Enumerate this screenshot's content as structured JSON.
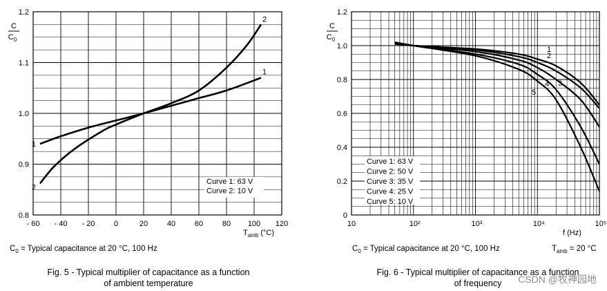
{
  "figures": [
    {
      "note": "C0 = Typical capacitance at 20 °C, 100 Hz",
      "caption_line1": "Fig. 5 - Typical multiplier of capacitance as a function",
      "caption_line2": "of ambient temperature"
    },
    {
      "note": "C0 = Typical capacitance at 20 °C, 100 Hz",
      "note_right": "Tamb = 20 °C",
      "caption_line1": "Fig. 6 - Typical multiplier of capacitance as a function",
      "caption_line2": "of frequency"
    }
  ],
  "watermark": "CSDN @牧神园地",
  "chart_data": [
    {
      "type": "line",
      "ylabel": "C/C0",
      "xlabel": "Tamb (°C)",
      "xlim": [
        -60,
        120
      ],
      "ylim": [
        0.8,
        1.2
      ],
      "x_ticks": [
        -60,
        -40,
        -20,
        0,
        20,
        40,
        60,
        80,
        100,
        120
      ],
      "x_tick_labels": [
        "- 60",
        "- 40",
        "- 20",
        "0",
        "20",
        "40",
        "60",
        "80",
        "100",
        "120"
      ],
      "y_ticks": [
        0.8,
        0.9,
        1.0,
        1.1,
        1.2
      ],
      "y_tick_labels": [
        "0.8",
        "0.9",
        "1.0",
        "1.1",
        "1.2"
      ],
      "grid": true,
      "legend": [
        "Curve 1: 63 V",
        "Curve 2: 10 V"
      ],
      "legend_position": "bottom-right",
      "series": [
        {
          "name": "1",
          "x": [
            -55,
            -40,
            -20,
            0,
            20,
            40,
            60,
            80,
            105
          ],
          "y": [
            0.94,
            0.955,
            0.972,
            0.986,
            1.0,
            1.015,
            1.03,
            1.045,
            1.07
          ]
        },
        {
          "name": "2",
          "x": [
            -55,
            -45,
            -30,
            -10,
            0,
            20,
            40,
            60,
            80,
            95,
            105
          ],
          "y": [
            0.862,
            0.895,
            0.93,
            0.965,
            0.978,
            1.0,
            1.02,
            1.045,
            1.09,
            1.135,
            1.175
          ]
        }
      ]
    },
    {
      "type": "line",
      "ylabel": "C/C0",
      "xlabel": "f (Hz)",
      "xscale": "log",
      "xlim": [
        10,
        100000
      ],
      "ylim": [
        0,
        1.2
      ],
      "x_tick_labels": [
        "10",
        "10²",
        "10³",
        "10⁴",
        "10⁵"
      ],
      "y_ticks": [
        0,
        0.2,
        0.4,
        0.6,
        0.8,
        1.0,
        1.2
      ],
      "y_tick_labels": [
        "0",
        "0.2",
        "0.4",
        "0.6",
        "0.8",
        "1.0",
        "1.2"
      ],
      "grid": true,
      "legend": [
        "Curve 1: 63 V",
        "Curve 2: 50 V",
        "Curve 3: 35 V",
        "Curve 4: 25 V",
        "Curve 5: 10 V"
      ],
      "legend_position": "bottom-left",
      "series": [
        {
          "name": "1",
          "x": [
            50,
            100,
            1000,
            5000,
            10000,
            20000,
            50000,
            100000
          ],
          "y": [
            1.01,
            1.0,
            0.98,
            0.95,
            0.92,
            0.88,
            0.78,
            0.65
          ]
        },
        {
          "name": "2",
          "x": [
            50,
            100,
            1000,
            5000,
            10000,
            20000,
            50000,
            100000
          ],
          "y": [
            1.01,
            1.0,
            0.975,
            0.935,
            0.9,
            0.85,
            0.75,
            0.63
          ]
        },
        {
          "name": "3",
          "x": [
            50,
            100,
            1000,
            5000,
            10000,
            20000,
            50000,
            100000
          ],
          "y": [
            1.015,
            1.0,
            0.965,
            0.915,
            0.87,
            0.8,
            0.68,
            0.52
          ]
        },
        {
          "name": "4",
          "x": [
            50,
            100,
            1000,
            5000,
            10000,
            20000,
            50000,
            100000
          ],
          "y": [
            1.015,
            1.0,
            0.95,
            0.89,
            0.83,
            0.74,
            0.52,
            0.3
          ]
        },
        {
          "name": "5",
          "x": [
            50,
            100,
            1000,
            5000,
            10000,
            20000,
            50000,
            100000
          ],
          "y": [
            1.02,
            1.0,
            0.94,
            0.86,
            0.79,
            0.68,
            0.4,
            0.14
          ]
        }
      ]
    }
  ]
}
